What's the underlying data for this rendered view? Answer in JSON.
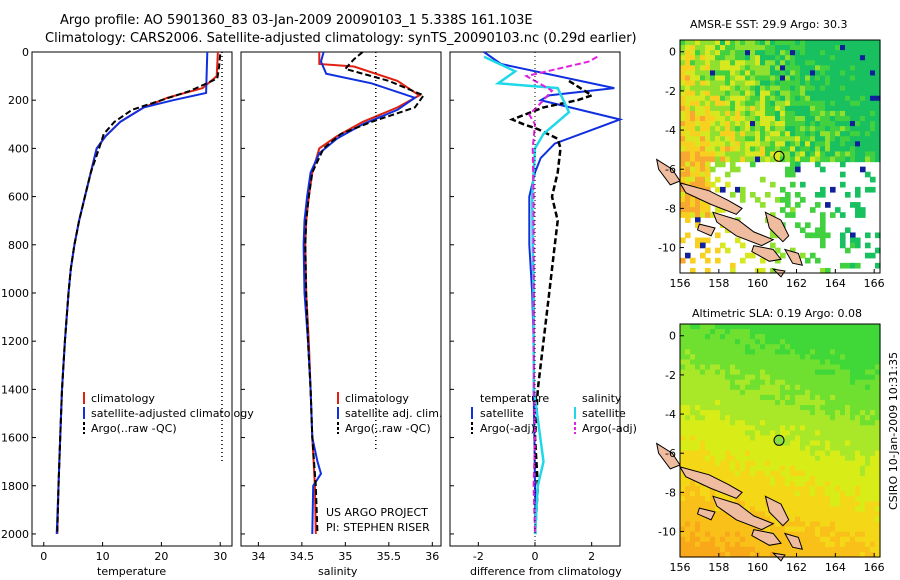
{
  "title_line1": "Argo profile: AO 5901360_83 03-Jan-2009 20090103_1 5.338S 161.103E",
  "title_line2": "Climatology: CARS2006. Satellite-adjusted climatology: synTS_20090103.nc (0.29d earlier)",
  "credit": "CSIRO 10-Jan-2009 10:31:35",
  "project_line1": "US ARGO PROJECT",
  "project_line2": "PI: STEPHEN RISER",
  "colors": {
    "climatology": "#e02010",
    "satellite": "#1030e0",
    "argo": "#000000",
    "sat_diff": "#20d8e8",
    "argo_sal_diff": "#e020e0"
  },
  "chart_data": [
    {
      "type": "line",
      "name": "temperature",
      "xlabel": "temperature",
      "ylim": [
        0,
        2050
      ],
      "xlim": [
        -2,
        32
      ],
      "xticks": [
        0,
        10,
        20,
        30
      ],
      "yticks": [
        0,
        200,
        400,
        600,
        800,
        1000,
        1200,
        1400,
        1600,
        1800,
        2000
      ],
      "legend": [
        "climatology",
        "satellite-adjusted climatology",
        "Argo(..raw -QC)"
      ],
      "series": [
        {
          "name": "climatology",
          "points": [
            [
              29.6,
              0
            ],
            [
              29.4,
              100
            ],
            [
              27,
              150
            ],
            [
              21,
              190
            ],
            [
              17,
              230
            ],
            [
              13,
              290
            ],
            [
              10.5,
              350
            ],
            [
              9,
              400
            ],
            [
              8,
              500
            ],
            [
              7,
              600
            ],
            [
              6,
              700
            ],
            [
              5.2,
              800
            ],
            [
              4.6,
              900
            ],
            [
              4.2,
              1000
            ],
            [
              3.6,
              1200
            ],
            [
              3.1,
              1400
            ],
            [
              2.8,
              1600
            ],
            [
              2.5,
              1800
            ],
            [
              2.3,
              2000
            ]
          ]
        },
        {
          "name": "satellite",
          "points": [
            [
              27.8,
              0
            ],
            [
              27.6,
              170
            ],
            [
              22,
              200
            ],
            [
              17,
              230
            ],
            [
              13,
              290
            ],
            [
              10.5,
              350
            ],
            [
              9,
              400
            ],
            [
              8,
              500
            ],
            [
              7,
              600
            ],
            [
              6,
              700
            ],
            [
              5.2,
              800
            ],
            [
              4.6,
              900
            ],
            [
              4.2,
              1000
            ],
            [
              3.6,
              1200
            ],
            [
              3.1,
              1400
            ],
            [
              2.8,
              1600
            ],
            [
              2.5,
              1800
            ],
            [
              2.2,
              2000
            ]
          ]
        },
        {
          "name": "Argo",
          "points": [
            [
              30,
              10
            ],
            [
              29.8,
              60
            ],
            [
              29.5,
              110
            ],
            [
              25,
              160
            ],
            [
              20,
              200
            ],
            [
              15,
              240
            ],
            [
              12,
              290
            ],
            [
              10.2,
              340
            ],
            [
              9.4,
              400
            ],
            [
              8,
              500
            ],
            [
              7,
              600
            ],
            [
              6,
              700
            ],
            [
              5.2,
              800
            ],
            [
              4.6,
              900
            ],
            [
              4.2,
              1000
            ],
            [
              3.6,
              1200
            ],
            [
              3.1,
              1400
            ],
            [
              2.8,
              1600
            ],
            [
              2.5,
              1800
            ],
            [
              2.3,
              2000
            ]
          ]
        },
        {
          "name": "Argo raw",
          "points": [
            [
              30.3,
              0
            ],
            [
              30.3,
              1700
            ]
          ]
        }
      ]
    },
    {
      "type": "line",
      "name": "salinity",
      "xlabel": "salinity",
      "ylim": [
        0,
        2050
      ],
      "xlim": [
        33.8,
        36.1
      ],
      "xticks": [
        34,
        34.5,
        35,
        35.5,
        36
      ],
      "legend": [
        "climatology",
        "satellite adj. clim.",
        "Argo(..raw -QC)"
      ],
      "series": [
        {
          "name": "climatology",
          "points": [
            [
              34.7,
              0
            ],
            [
              34.7,
              50
            ],
            [
              35.1,
              60
            ],
            [
              35.6,
              120
            ],
            [
              35.85,
              180
            ],
            [
              35.6,
              230
            ],
            [
              35.2,
              290
            ],
            [
              34.9,
              350
            ],
            [
              34.7,
              400
            ],
            [
              34.62,
              500
            ],
            [
              34.58,
              600
            ],
            [
              34.55,
              700
            ],
            [
              34.54,
              800
            ],
            [
              34.55,
              1000
            ],
            [
              34.58,
              1200
            ],
            [
              34.6,
              1400
            ],
            [
              34.62,
              1600
            ],
            [
              34.65,
              1800
            ],
            [
              34.66,
              2000
            ]
          ]
        },
        {
          "name": "satellite",
          "points": [
            [
              34.75,
              0
            ],
            [
              34.72,
              40
            ],
            [
              34.78,
              90
            ],
            [
              35.3,
              130
            ],
            [
              35.8,
              190
            ],
            [
              35.6,
              240
            ],
            [
              35.2,
              300
            ],
            [
              34.9,
              360
            ],
            [
              34.7,
              420
            ],
            [
              34.6,
              500
            ],
            [
              34.56,
              600
            ],
            [
              34.53,
              700
            ],
            [
              34.52,
              800
            ],
            [
              34.53,
              1000
            ],
            [
              34.57,
              1200
            ],
            [
              34.6,
              1400
            ],
            [
              34.62,
              1600
            ],
            [
              34.68,
              1700
            ],
            [
              34.72,
              1750
            ],
            [
              34.63,
              1800
            ],
            [
              34.62,
              2000
            ]
          ]
        },
        {
          "name": "Argo",
          "points": [
            [
              35.2,
              0
            ],
            [
              35.1,
              30
            ],
            [
              35.0,
              70
            ],
            [
              35.5,
              120
            ],
            [
              35.9,
              180
            ],
            [
              35.8,
              230
            ],
            [
              35.3,
              290
            ],
            [
              34.95,
              340
            ],
            [
              34.75,
              400
            ],
            [
              34.62,
              500
            ],
            [
              34.58,
              600
            ],
            [
              34.55,
              700
            ],
            [
              34.54,
              800
            ],
            [
              34.55,
              1000
            ],
            [
              34.57,
              1200
            ],
            [
              34.6,
              1400
            ],
            [
              34.62,
              1600
            ],
            [
              34.66,
              1800
            ],
            [
              34.68,
              2000
            ]
          ]
        },
        {
          "name": "Argo raw",
          "points": [
            [
              35.35,
              0
            ],
            [
              35.35,
              1650
            ]
          ]
        }
      ]
    },
    {
      "type": "line",
      "name": "difference",
      "xlabel": "difference from climatology",
      "ylim": [
        0,
        2050
      ],
      "xlim": [
        -3,
        3
      ],
      "xticks": [
        -2,
        0,
        2
      ],
      "legend_left_header": "temperature",
      "legend_right_header": "salinity",
      "legend": [
        "satellite",
        "Argo(-adj)",
        "satellite",
        "Argo(-adj)"
      ],
      "series": [
        {
          "name": "temperature satellite",
          "points": [
            [
              -1.8,
              0
            ],
            [
              -1.2,
              50
            ],
            [
              2.8,
              150
            ],
            [
              0.5,
              180
            ],
            [
              0.2,
              200
            ],
            [
              3,
              280
            ],
            [
              0.7,
              380
            ],
            [
              0.2,
              440
            ],
            [
              0,
              500
            ],
            [
              -0.2,
              600
            ],
            [
              -0.2,
              800
            ],
            [
              -0.1,
              1000
            ],
            [
              -0.05,
              1200
            ],
            [
              -0.05,
              1400
            ],
            [
              -0.02,
              1600
            ],
            [
              0,
              1800
            ],
            [
              0.02,
              2000
            ]
          ]
        },
        {
          "name": "temperature Argo",
          "points": [
            [
              1.2,
              120
            ],
            [
              2.0,
              180
            ],
            [
              1.5,
              200
            ],
            [
              0.3,
              230
            ],
            [
              -0.8,
              280
            ],
            [
              -0.4,
              300
            ],
            [
              0.1,
              320
            ],
            [
              0.8,
              360
            ],
            [
              0.9,
              400
            ],
            [
              0.8,
              500
            ],
            [
              0.6,
              600
            ],
            [
              0.8,
              700
            ],
            [
              0.7,
              800
            ],
            [
              0.5,
              1000
            ],
            [
              0.3,
              1200
            ],
            [
              0.1,
              1400
            ],
            [
              0.0,
              1600
            ],
            [
              0.1,
              1800
            ],
            [
              0.0,
              2000
            ]
          ]
        },
        {
          "name": "salinity satellite",
          "points": [
            [
              -1.8,
              20
            ],
            [
              -0.7,
              80
            ],
            [
              -1.3,
              130
            ],
            [
              0.8,
              150
            ],
            [
              1.2,
              250
            ],
            [
              0.3,
              340
            ],
            [
              0,
              400
            ],
            [
              -0.1,
              600
            ],
            [
              -0.08,
              800
            ],
            [
              -0.05,
              1000
            ],
            [
              -0.05,
              1200
            ],
            [
              -0.04,
              1400
            ],
            [
              0.3,
              1700
            ],
            [
              0.1,
              1800
            ],
            [
              0.0,
              2000
            ]
          ]
        },
        {
          "name": "salinity Argo",
          "points": [
            [
              2.2,
              20
            ],
            [
              1.9,
              40
            ],
            [
              -0.3,
              100
            ],
            [
              0.6,
              160
            ],
            [
              0.3,
              200
            ],
            [
              -0.2,
              260
            ],
            [
              0.0,
              300
            ],
            [
              -0.08,
              400
            ],
            [
              -0.05,
              600
            ],
            [
              -0.05,
              800
            ],
            [
              -0.04,
              1000
            ],
            [
              -0.05,
              1200
            ],
            [
              -0.03,
              1400
            ],
            [
              0.0,
              1600
            ],
            [
              -0.05,
              1800
            ],
            [
              0.0,
              2000
            ]
          ]
        }
      ]
    },
    {
      "type": "heatmap",
      "name": "sst_map",
      "title": "AMSR-E SST: 29.9 Argo: 30.3",
      "xticks": [
        156,
        158,
        160,
        162,
        164,
        166
      ],
      "yticks": [
        0,
        -2,
        -4,
        -6,
        -8,
        -10
      ],
      "xlim": [
        156,
        166.3
      ],
      "ylim": [
        -11.3,
        0.6
      ],
      "argo_point": [
        161.1,
        -5.34
      ]
    },
    {
      "type": "heatmap",
      "name": "sla_map",
      "title": "Altimetric SLA: 0.19 Argo: 0.08",
      "xticks": [
        156,
        158,
        160,
        162,
        164,
        166
      ],
      "yticks": [
        0,
        -2,
        -4,
        -6,
        -8,
        -10
      ],
      "xlim": [
        156,
        166.3
      ],
      "ylim": [
        -11.3,
        0.6
      ],
      "argo_point": [
        161.1,
        -5.34
      ]
    }
  ]
}
